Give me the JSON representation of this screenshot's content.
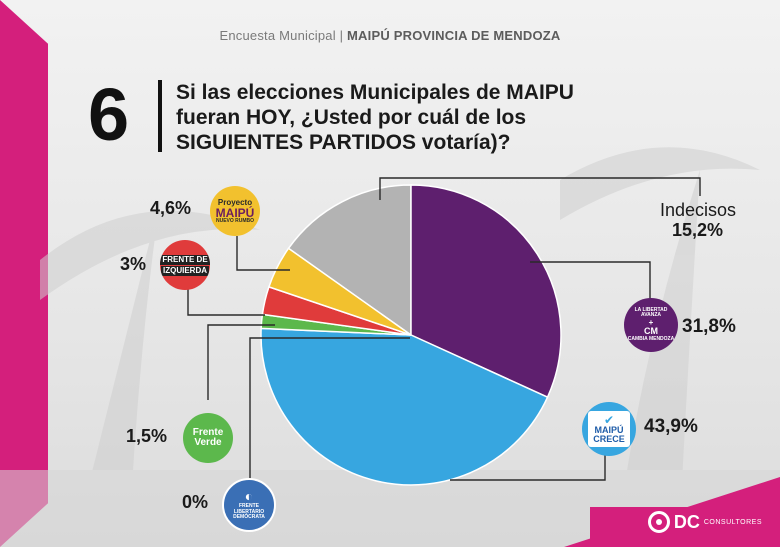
{
  "header": {
    "prefix": "Encuesta Municipal |",
    "location": "MAIPÚ PROVINCIA DE MENDOZA"
  },
  "question": {
    "number": "6",
    "lines": [
      "Si las elecciones Municipales de MAIPU",
      "fueran HOY, ¿Usted por cuál de los",
      "SIGUIENTES PARTIDOS votaría)?"
    ]
  },
  "logos": {
    "proyecto_maipu": [
      "Proyecto",
      "MAIPÚ",
      "NUEVO RUMBO"
    ],
    "frente_izquierda": [
      "FRENTE DE",
      "IZQUIERDA"
    ],
    "frente_verde": [
      "Frente",
      "Verde"
    ],
    "libertario": [
      "FRENTE LIBERTARIO",
      "DEMÓCRATA"
    ],
    "maipu_crece": [
      "MAIPÚ",
      "CRECE"
    ],
    "cambia_mendoza": [
      "LA LIBERTAD AVANZA",
      "CM",
      "CAMBIA MENDOZA"
    ]
  },
  "colors": {
    "indecisos": "#b3b3b3",
    "libertad_cambia": "#5e1f6e",
    "maipu_crece": "#37a6e0",
    "frente_libertario": "#3a6fb5",
    "frente_verde": "#5cb84c",
    "frente_izquierda": "#e03b3b",
    "proyecto_maipu": "#f2c12e",
    "accent": "#d41f7c"
  },
  "chart_data": {
    "type": "pie",
    "unit": "%",
    "slices": [
      {
        "label": "Indecisos",
        "value": 15.2,
        "display": "15,2%"
      },
      {
        "label": "La Libertad Avanza + Cambia Mendoza",
        "value": 31.8,
        "display": "31,8%"
      },
      {
        "label": "Maipú Crece",
        "value": 43.9,
        "display": "43,9%"
      },
      {
        "label": "Frente Libertario Demócrata",
        "value": 0,
        "display": "0%"
      },
      {
        "label": "Frente Verde",
        "value": 1.5,
        "display": "1,5%"
      },
      {
        "label": "Frente de Izquierda",
        "value": 3,
        "display": "3%"
      },
      {
        "label": "Proyecto Maipú",
        "value": 4.6,
        "display": "4,6%"
      }
    ],
    "indecisos_label": "Indecisos"
  },
  "footer": {
    "brand": "DC",
    "sub": "CONSULTORES"
  }
}
